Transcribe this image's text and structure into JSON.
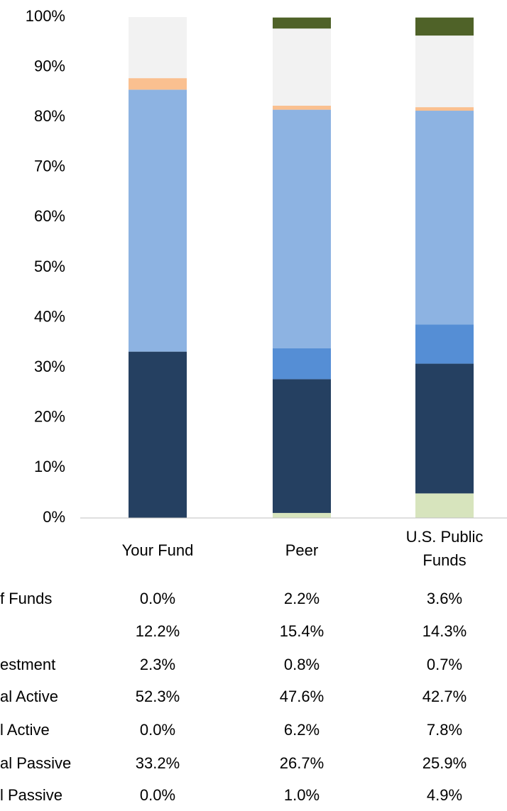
{
  "chart_data": {
    "type": "stacked_bar",
    "categories": [
      "Your Fund",
      "Peer",
      "U.S. Public Funds"
    ],
    "ylim": [
      0,
      100
    ],
    "yticks": [
      {
        "value": 0,
        "label": "0%"
      },
      {
        "value": 10,
        "label": "10%"
      },
      {
        "value": 20,
        "label": "20%"
      },
      {
        "value": 30,
        "label": "30%"
      },
      {
        "value": 40,
        "label": "40%"
      },
      {
        "value": 50,
        "label": "50%"
      },
      {
        "value": 60,
        "label": "60%"
      },
      {
        "value": 70,
        "label": "70%"
      },
      {
        "value": 80,
        "label": "80%"
      },
      {
        "value": 90,
        "label": "90%"
      },
      {
        "value": 100,
        "label": "100%"
      }
    ],
    "grid": false,
    "series": [
      {
        "name": "f Funds",
        "color": "#4f6228",
        "values": [
          0.0,
          2.2,
          3.6
        ],
        "value_labels": [
          "0.0%",
          "2.2%",
          "3.6%"
        ]
      },
      {
        "name": null,
        "color": "#f2f2f2",
        "values": [
          12.2,
          15.4,
          14.3
        ],
        "value_labels": [
          "12.2%",
          "15.4%",
          "14.3%"
        ]
      },
      {
        "name": "estment",
        "color": "#fac090",
        "values": [
          2.3,
          0.8,
          0.7
        ],
        "value_labels": [
          "2.3%",
          "0.8%",
          "0.7%"
        ]
      },
      {
        "name": "al Active",
        "color": "#8db3e2",
        "values": [
          52.3,
          47.6,
          42.7
        ],
        "value_labels": [
          "52.3%",
          "47.6%",
          "42.7%"
        ]
      },
      {
        "name": "l Active",
        "color": "#558ed5",
        "values": [
          0.0,
          6.2,
          7.8
        ],
        "value_labels": [
          "0.0%",
          "6.2%",
          "7.8%"
        ]
      },
      {
        "name": "al Passive",
        "color": "#254061",
        "values": [
          33.2,
          26.7,
          25.9
        ],
        "value_labels": [
          "33.2%",
          "26.7%",
          "25.9%"
        ]
      },
      {
        "name": "l Passive",
        "color": "#d7e4bd",
        "values": [
          0.0,
          1.0,
          4.9
        ],
        "value_labels": [
          "0.0%",
          "1.0%",
          "4.9%"
        ]
      }
    ]
  }
}
